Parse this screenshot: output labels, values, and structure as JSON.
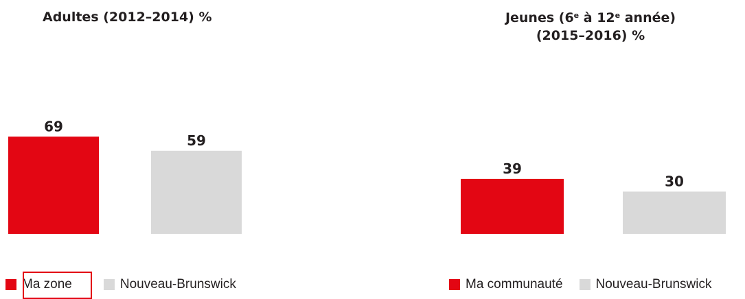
{
  "colors": {
    "series1": "#e30613",
    "series2": "#d9d9d9"
  },
  "chart_data": [
    {
      "type": "bar",
      "title": "Adultes (2012–2014) %",
      "categories": [
        "Ma zone",
        "Nouveau-Brunswick"
      ],
      "values": [
        69,
        59
      ],
      "ylim": [
        0,
        100
      ],
      "grid": false,
      "legend": [
        "Ma zone",
        "Nouveau-Brunswick"
      ],
      "legend_placement": "bottom"
    },
    {
      "type": "bar",
      "title_line1_pre": "Jeunes (6",
      "title_sup1": "e",
      "title_line1_mid": " à 12",
      "title_sup2": "e",
      "title_line1_post": " année)",
      "title_line2": "(2015–2016) %",
      "categories": [
        "Ma communauté",
        "Nouveau-Brunswick"
      ],
      "values": [
        39,
        30
      ],
      "ylim": [
        0,
        100
      ],
      "grid": false,
      "legend": [
        "Ma communauté",
        "Nouveau-Brunswick"
      ],
      "legend_placement": "bottom"
    }
  ]
}
